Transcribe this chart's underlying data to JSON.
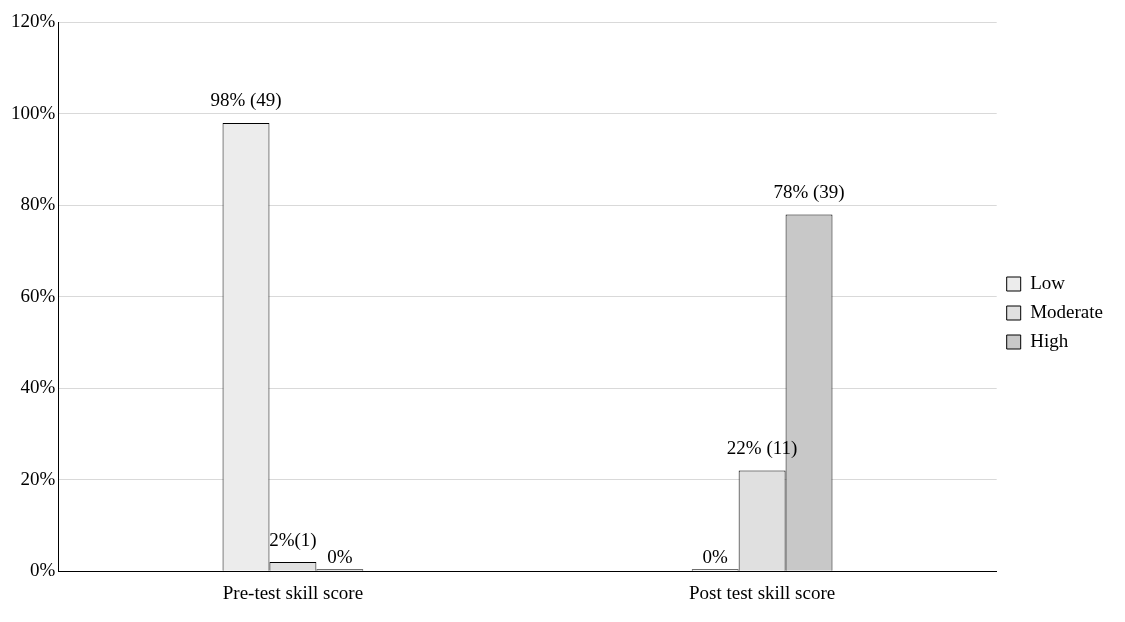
{
  "chart_data": {
    "type": "bar",
    "categories": [
      "Pre-test skill score",
      "Post test skill score"
    ],
    "series": [
      {
        "name": "Low",
        "color": "#ececec",
        "values": [
          98,
          0
        ],
        "value_labels": [
          "98% (49)",
          "0%"
        ]
      },
      {
        "name": "Moderate",
        "color": "#e0e0e0",
        "values": [
          2,
          22
        ],
        "value_labels": [
          "2%(1)",
          "22% (11)"
        ]
      },
      {
        "name": "High",
        "color": "#c8c8c8",
        "values": [
          0,
          78
        ],
        "value_labels": [
          "0%",
          "78% (39)"
        ]
      }
    ],
    "ylim": [
      0,
      120
    ],
    "yticks": [
      {
        "value": 0,
        "label": "0%"
      },
      {
        "value": 20,
        "label": "20%"
      },
      {
        "value": 40,
        "label": "40%"
      },
      {
        "value": 60,
        "label": "60%"
      },
      {
        "value": 80,
        "label": "80%"
      },
      {
        "value": 100,
        "label": "100%"
      },
      {
        "value": 120,
        "label": "120%"
      }
    ],
    "grid": "y",
    "legend": "right"
  }
}
